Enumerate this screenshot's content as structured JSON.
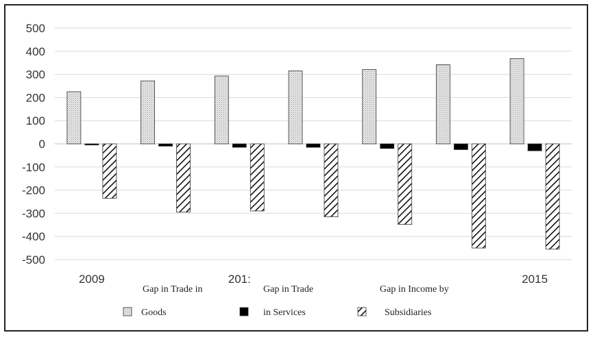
{
  "chart_data": {
    "type": "bar",
    "categories": [
      "2009",
      "",
      "201:",
      "",
      "",
      "",
      "2015"
    ],
    "series": [
      {
        "name": "Gap in Trade in Goods",
        "values": [
          225,
          272,
          293,
          315,
          321,
          342,
          368
        ],
        "pattern": "dots"
      },
      {
        "name": "Gap in Trade in Services",
        "values": [
          -5,
          -10,
          -15,
          -15,
          -20,
          -25,
          -30
        ],
        "pattern": "solid"
      },
      {
        "name": "Gap in Income by Subsidiaries",
        "values": [
          -235,
          -295,
          -290,
          -315,
          -348,
          -450,
          -455
        ],
        "pattern": "hatch"
      }
    ],
    "ylim": [
      -500,
      500
    ],
    "yticks": [
      500,
      400,
      300,
      200,
      100,
      0,
      -100,
      -200,
      -300,
      -400,
      -500
    ],
    "grid": true,
    "legend_position": "bottom",
    "legend_lines": [
      {
        "top": "Gap in Trade in",
        "bottom": "Goods"
      },
      {
        "top": "Gap in Trade",
        "bottom": "in Services"
      },
      {
        "top": "Gap in Income by",
        "bottom": "Subsidiaries"
      }
    ],
    "colors": {
      "goods": "#e6e6e6",
      "services": "#000000",
      "subsidiaries": "#ffffff",
      "grid": "#d9d9d9",
      "outline": "#333333"
    }
  }
}
